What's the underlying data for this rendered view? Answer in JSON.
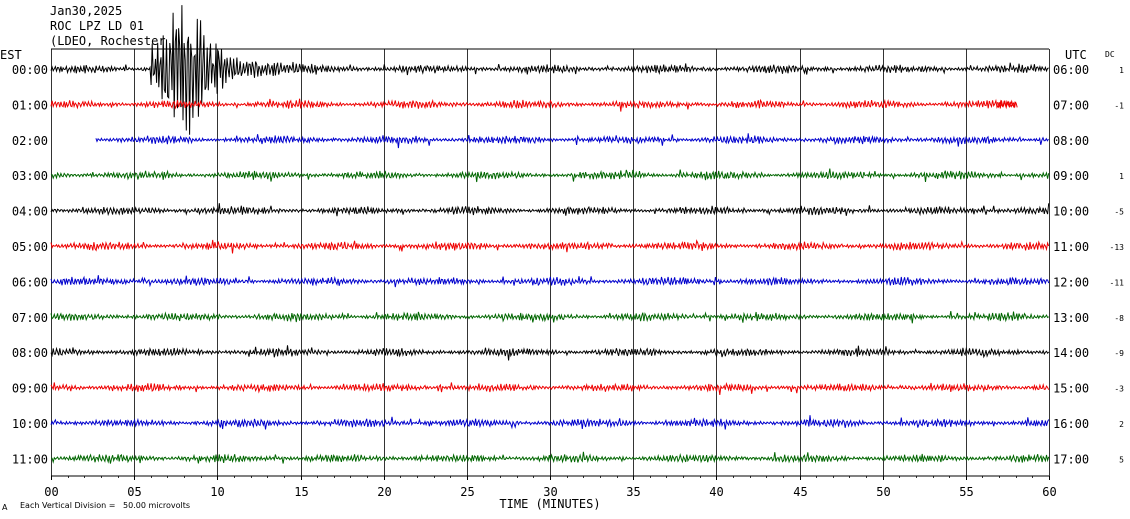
{
  "header": {
    "date": "Jan30,2025",
    "station": "ROC LPZ LD 01",
    "network": "(LDEO, Rochester"
  },
  "left_zone": "EST",
  "right_zone": "UTC",
  "dc_header": "DC",
  "footer": {
    "division_note": "Each Vertical Division =   50.00 microvolts",
    "corner_mark": "A"
  },
  "colors": {
    "cycle": [
      "#000000",
      "#ee0000",
      "#0000cc",
      "#006600"
    ],
    "grid": "#000000"
  },
  "chart_data": {
    "type": "line",
    "title": "",
    "xlabel": "TIME (MINUTES)",
    "xlim": [
      0,
      60
    ],
    "xticks": [
      0,
      5,
      10,
      15,
      20,
      25,
      30,
      35,
      40,
      45,
      50,
      55,
      60
    ],
    "xtick_labels": [
      "00",
      "05",
      "10",
      "15",
      "20",
      "25",
      "30",
      "35",
      "40",
      "45",
      "50",
      "55",
      "60"
    ],
    "rows": [
      {
        "left": "00:00",
        "right": "06:00",
        "dc": "1",
        "start": 0,
        "end": 60,
        "event": [
          6,
          16
        ]
      },
      {
        "left": "01:00",
        "right": "07:00",
        "dc": "-1",
        "start": 0,
        "end": 58
      },
      {
        "left": "02:00",
        "right": "08:00",
        "dc": "",
        "start": 2.7,
        "end": 60
      },
      {
        "left": "03:00",
        "right": "09:00",
        "dc": "1",
        "start": 0,
        "end": 60
      },
      {
        "left": "04:00",
        "right": "10:00",
        "dc": "-5",
        "start": 0,
        "end": 60
      },
      {
        "left": "05:00",
        "right": "11:00",
        "dc": "-13",
        "start": 0,
        "end": 60
      },
      {
        "left": "06:00",
        "right": "12:00",
        "dc": "-11",
        "start": 0,
        "end": 60
      },
      {
        "left": "07:00",
        "right": "13:00",
        "dc": "-8",
        "start": 0,
        "end": 60
      },
      {
        "left": "08:00",
        "right": "14:00",
        "dc": "-9",
        "start": 0,
        "end": 60
      },
      {
        "left": "09:00",
        "right": "15:00",
        "dc": "-3",
        "start": 0,
        "end": 60
      },
      {
        "left": "10:00",
        "right": "16:00",
        "dc": "2",
        "start": 0,
        "end": 60
      },
      {
        "left": "11:00",
        "right": "17:00",
        "dc": "5",
        "start": 0,
        "end": 60
      }
    ]
  }
}
